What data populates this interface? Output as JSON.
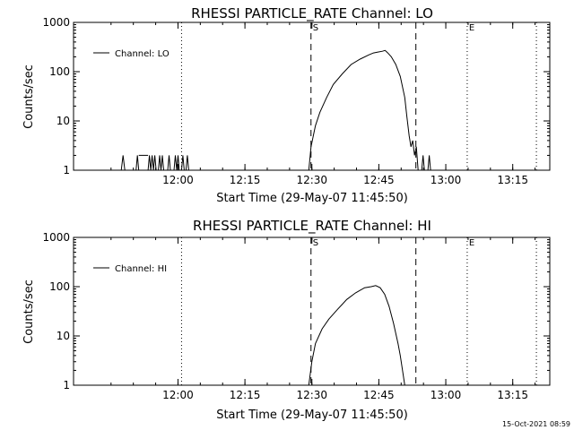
{
  "footer": {
    "timestamp": "15-Oct-2021 08:59"
  },
  "chart_data": [
    {
      "type": "line",
      "title": "RHESSI PARTICLE_RATE Channel: LO",
      "xlabel": "Start Time (29-May-07 11:45:50)",
      "ylabel": "Counts/sec",
      "y_scale": "log",
      "ylim": [
        1,
        1000
      ],
      "xlim_min": [
        -9.2,
        97.5
      ],
      "x_ticks": [
        {
          "min": 14.2,
          "label": "12:00"
        },
        {
          "min": 29.2,
          "label": "12:15"
        },
        {
          "min": 44.2,
          "label": "12:30"
        },
        {
          "min": 59.2,
          "label": "12:45"
        },
        {
          "min": 74.2,
          "label": "13:00"
        },
        {
          "min": 89.2,
          "label": "13:15"
        }
      ],
      "y_ticks": [
        {
          "value": 1,
          "label": "1"
        },
        {
          "value": 10,
          "label": "10"
        },
        {
          "value": 100,
          "label": "100"
        },
        {
          "value": 1000,
          "label": "1000"
        }
      ],
      "legend": "Channel: LO",
      "legend_position": "top-left",
      "markers": [
        {
          "min": 15.0,
          "style": "dotted",
          "label": ""
        },
        {
          "min": 44.0,
          "style": "dashed",
          "label": "S"
        },
        {
          "min": 67.5,
          "style": "dashed",
          "label": ""
        },
        {
          "min": 79.0,
          "style": "dotted",
          "label": "E"
        },
        {
          "min": 94.5,
          "style": "dotted",
          "label": ""
        }
      ],
      "series": [
        {
          "name": "Channel: LO",
          "segments": [
            [
              [
                1.5,
                1
              ],
              [
                1.9,
                2
              ],
              [
                2.3,
                1
              ]
            ],
            [
              [
                4.8,
                1
              ],
              [
                5.1,
                2
              ],
              [
                5.4,
                1
              ]
            ],
            [
              [
                5.4,
                2
              ],
              [
                7.5,
                2
              ]
            ],
            [
              [
                7.5,
                1
              ],
              [
                7.8,
                2
              ],
              [
                8.1,
                1
              ],
              [
                8.4,
                2
              ],
              [
                8.7,
                1
              ],
              [
                9.0,
                2
              ],
              [
                9.3,
                1
              ]
            ],
            [
              [
                9.8,
                1
              ],
              [
                10.1,
                2
              ],
              [
                10.4,
                1
              ],
              [
                10.7,
                2
              ],
              [
                11.0,
                1
              ]
            ],
            [
              [
                11.9,
                1
              ],
              [
                12.2,
                2
              ],
              [
                12.5,
                1
              ]
            ],
            [
              [
                13.3,
                1
              ],
              [
                13.6,
                2
              ],
              [
                13.9,
                1
              ],
              [
                14.2,
                2
              ],
              [
                14.5,
                1
              ]
            ],
            [
              [
                15.0,
                1
              ],
              [
                15.3,
                2
              ],
              [
                15.6,
                1
              ]
            ],
            [
              [
                16.0,
                1
              ],
              [
                16.3,
                2
              ],
              [
                16.6,
                1
              ]
            ],
            [
              [
                43.5,
                1
              ],
              [
                44.0,
                3
              ],
              [
                45.0,
                8
              ],
              [
                46.0,
                15
              ],
              [
                47.5,
                30
              ],
              [
                49.0,
                55
              ],
              [
                51.0,
                90
              ],
              [
                53.0,
                140
              ],
              [
                55.0,
                180
              ],
              [
                57.0,
                220
              ],
              [
                58.0,
                240
              ],
              [
                59.0,
                250
              ],
              [
                60.0,
                260
              ],
              [
                60.6,
                270
              ],
              [
                61.2,
                240
              ],
              [
                62.0,
                200
              ],
              [
                63.0,
                140
              ],
              [
                64.0,
                80
              ],
              [
                65.0,
                30
              ],
              [
                65.5,
                12
              ],
              [
                66.0,
                5
              ],
              [
                66.4,
                3
              ],
              [
                66.8,
                4
              ],
              [
                67.2,
                2
              ],
              [
                67.6,
                3
              ],
              [
                68.0,
                1
              ]
            ],
            [
              [
                68.8,
                1
              ],
              [
                69.1,
                2
              ],
              [
                69.4,
                1
              ]
            ],
            [
              [
                70.2,
                1
              ],
              [
                70.5,
                2
              ],
              [
                70.8,
                1
              ]
            ]
          ]
        }
      ]
    },
    {
      "type": "line",
      "title": "RHESSI PARTICLE_RATE Channel: HI",
      "xlabel": "Start Time (29-May-07 11:45:50)",
      "ylabel": "Counts/sec",
      "y_scale": "log",
      "ylim": [
        1,
        1000
      ],
      "xlim_min": [
        -9.2,
        97.5
      ],
      "x_ticks": [
        {
          "min": 14.2,
          "label": "12:00"
        },
        {
          "min": 29.2,
          "label": "12:15"
        },
        {
          "min": 44.2,
          "label": "12:30"
        },
        {
          "min": 59.2,
          "label": "12:45"
        },
        {
          "min": 74.2,
          "label": "13:00"
        },
        {
          "min": 89.2,
          "label": "13:15"
        }
      ],
      "y_ticks": [
        {
          "value": 1,
          "label": "1"
        },
        {
          "value": 10,
          "label": "10"
        },
        {
          "value": 100,
          "label": "100"
        },
        {
          "value": 1000,
          "label": "1000"
        }
      ],
      "legend": "Channel: HI",
      "legend_position": "top-left",
      "markers": [
        {
          "min": 15.0,
          "style": "dotted",
          "label": ""
        },
        {
          "min": 44.0,
          "style": "dashed",
          "label": "S"
        },
        {
          "min": 67.5,
          "style": "dashed",
          "label": ""
        },
        {
          "min": 79.0,
          "style": "dotted",
          "label": "E"
        },
        {
          "min": 94.5,
          "style": "dotted",
          "label": ""
        }
      ],
      "series": [
        {
          "name": "Channel: HI",
          "segments": [
            [
              [
                43.5,
                1
              ],
              [
                44.2,
                3
              ],
              [
                45.0,
                7
              ],
              [
                46.5,
                14
              ],
              [
                48.0,
                22
              ],
              [
                50.0,
                35
              ],
              [
                52.0,
                55
              ],
              [
                54.0,
                75
              ],
              [
                56.0,
                95
              ],
              [
                57.5,
                100
              ],
              [
                58.5,
                105
              ],
              [
                59.5,
                95
              ],
              [
                60.5,
                70
              ],
              [
                61.5,
                40
              ],
              [
                62.5,
                18
              ],
              [
                63.5,
                7
              ],
              [
                64.0,
                4
              ],
              [
                64.5,
                2
              ],
              [
                65.0,
                1
              ]
            ]
          ]
        }
      ]
    }
  ]
}
